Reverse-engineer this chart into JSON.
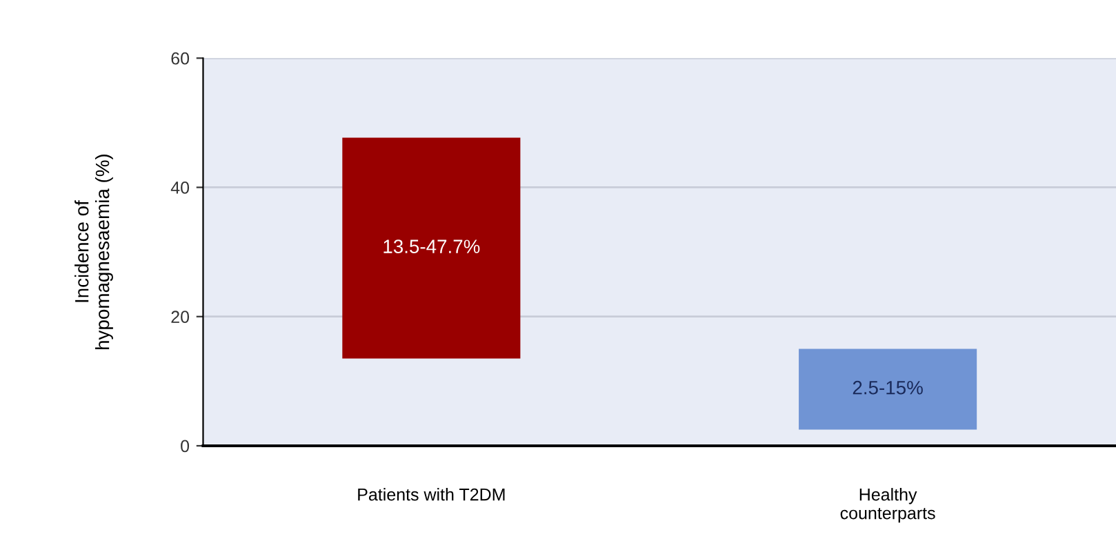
{
  "chart_data": {
    "type": "bar",
    "ylabel": "Incidence of\nhypomagnesaemia (%)",
    "categories": [
      "Patients with T2DM",
      "Healthy\ncounterparts"
    ],
    "base": [
      13.5,
      2.5
    ],
    "values": [
      34.2,
      12.5
    ],
    "colors": [
      "#990000",
      "#7094d4"
    ],
    "annotations": [
      "13.5-47.7%",
      "2.5-15%"
    ],
    "ylim": [
      0,
      60
    ],
    "yticks": [
      0,
      20,
      40,
      60
    ],
    "grid": "y"
  }
}
